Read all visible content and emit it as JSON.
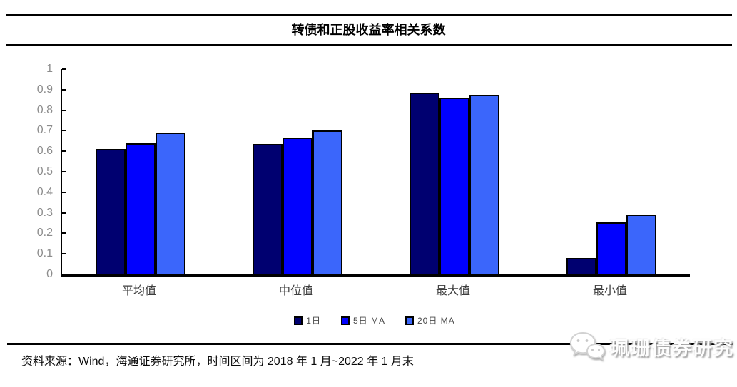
{
  "title": "转债和正股收益率相关系数",
  "source_note": "资料来源：Wind，海通证券研究所，时间区间为 2018 年 1 月~2022 年 1 月末",
  "watermark": {
    "icon": "wechat-icon",
    "text": "珮珊债券研究"
  },
  "chart_data": {
    "type": "bar",
    "title": "转债和正股收益率相关系数",
    "categories": [
      "平均值",
      "中位值",
      "最大值",
      "最小值"
    ],
    "series": [
      {
        "name": "1日",
        "color": "#000070",
        "values": [
          0.61,
          0.635,
          0.885,
          0.08
        ]
      },
      {
        "name": "5日 MA",
        "color": "#0101FE",
        "values": [
          0.64,
          0.665,
          0.86,
          0.255
        ]
      },
      {
        "name": "20日 MA",
        "color": "#3B66FB",
        "values": [
          0.69,
          0.7,
          0.875,
          0.29
        ]
      }
    ],
    "xlabel": "",
    "ylabel": "",
    "ylim": [
      0,
      1
    ],
    "ytick_step": 0.1,
    "ytick_labels": [
      "1",
      "0.9",
      "0.8",
      "0.7",
      "0.6",
      "0.5",
      "0.4",
      "0.3",
      "0.2",
      "0.1",
      "0"
    ],
    "grid": false,
    "legend_position": "bottom"
  }
}
